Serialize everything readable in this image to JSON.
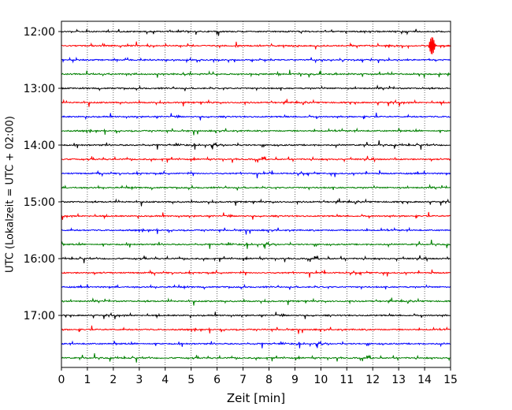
{
  "chart_data": {
    "type": "line",
    "title": "",
    "xlabel": "Zeit  [min]",
    "ylabel": "UTC (Lokalzeit = UTC + 02:00)",
    "xlim": [
      0,
      15
    ],
    "x_ticks": [
      0,
      1,
      2,
      3,
      4,
      5,
      6,
      7,
      8,
      9,
      10,
      11,
      12,
      13,
      14,
      15
    ],
    "y_ticks": [
      "12:00",
      "13:00",
      "14:00",
      "15:00",
      "16:00",
      "17:00"
    ],
    "row_interval_min": 15,
    "vertical_grid": "dotted",
    "legend": "none",
    "colors": {
      "black": "#000000",
      "red": "#ff0000",
      "blue": "#0000ff",
      "green": "#008000"
    },
    "series": [
      {
        "start": "12:00",
        "color": "black"
      },
      {
        "start": "12:15",
        "color": "red"
      },
      {
        "start": "12:30",
        "color": "blue"
      },
      {
        "start": "12:45",
        "color": "green"
      },
      {
        "start": "13:00",
        "color": "black"
      },
      {
        "start": "13:15",
        "color": "red"
      },
      {
        "start": "13:30",
        "color": "blue"
      },
      {
        "start": "13:45",
        "color": "green"
      },
      {
        "start": "14:00",
        "color": "black"
      },
      {
        "start": "14:15",
        "color": "red"
      },
      {
        "start": "14:30",
        "color": "blue"
      },
      {
        "start": "14:45",
        "color": "green"
      },
      {
        "start": "15:00",
        "color": "black"
      },
      {
        "start": "15:15",
        "color": "red"
      },
      {
        "start": "15:30",
        "color": "blue"
      },
      {
        "start": "15:45",
        "color": "green"
      },
      {
        "start": "16:00",
        "color": "black"
      },
      {
        "start": "16:15",
        "color": "red"
      },
      {
        "start": "16:30",
        "color": "blue"
      },
      {
        "start": "16:45",
        "color": "green"
      },
      {
        "start": "17:00",
        "color": "black"
      },
      {
        "start": "17:15",
        "color": "red"
      },
      {
        "start": "17:30",
        "color": "blue"
      },
      {
        "start": "17:45",
        "color": "green"
      }
    ]
  }
}
